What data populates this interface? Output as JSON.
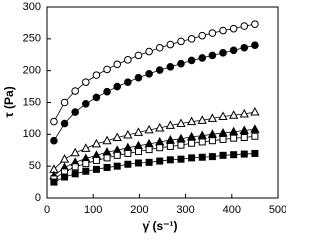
{
  "chart_data": {
    "type": "scatter",
    "xlabel": "γ̇ (s⁻¹)",
    "ylabel": "τ (Pa)",
    "x": [
      15,
      38,
      61,
      84,
      107,
      130,
      152,
      175,
      198,
      221,
      244,
      267,
      290,
      313,
      336,
      358,
      381,
      404,
      427,
      450
    ],
    "series": [
      {
        "marker": "circle",
        "filled": false,
        "color": "#000000",
        "values": [
          120,
          150,
          168,
          182,
          193,
          202,
          210,
          217,
          224,
          230,
          236,
          241,
          246,
          250,
          255,
          259,
          263,
          266,
          270,
          273
        ]
      },
      {
        "marker": "circle",
        "filled": true,
        "color": "#000000",
        "values": [
          90,
          117,
          135,
          148,
          158,
          167,
          175,
          182,
          189,
          195,
          201,
          206,
          211,
          216,
          220,
          224,
          228,
          232,
          236,
          240
        ]
      },
      {
        "marker": "triangle",
        "filled": false,
        "color": "#000000",
        "values": [
          45,
          61,
          71,
          78,
          85,
          90,
          95,
          99,
          103,
          107,
          110,
          114,
          117,
          120,
          122,
          125,
          128,
          130,
          132,
          135
        ]
      },
      {
        "marker": "triangle",
        "filled": true,
        "color": "#000000",
        "values": [
          35,
          48,
          56,
          62,
          67,
          72,
          75,
          79,
          82,
          85,
          88,
          91,
          93,
          96,
          98,
          100,
          102,
          104,
          106,
          108
        ]
      },
      {
        "marker": "square",
        "filled": false,
        "color": "#000000",
        "values": [
          30,
          41,
          49,
          54,
          59,
          63,
          67,
          70,
          73,
          76,
          79,
          81,
          83,
          86,
          88,
          90,
          92,
          94,
          95,
          97
        ]
      },
      {
        "marker": "square",
        "filled": true,
        "color": "#000000",
        "values": [
          25,
          33,
          38,
          42,
          45,
          48,
          50,
          53,
          55,
          56,
          58,
          60,
          61,
          63,
          64,
          65,
          67,
          68,
          69,
          70
        ]
      }
    ],
    "lines": true,
    "xlim": [
      0,
      500
    ],
    "xticks": [
      0,
      100,
      200,
      300,
      400,
      500
    ],
    "ylim": [
      0,
      300
    ],
    "yticks": [
      0,
      50,
      100,
      150,
      200,
      250,
      300
    ]
  }
}
